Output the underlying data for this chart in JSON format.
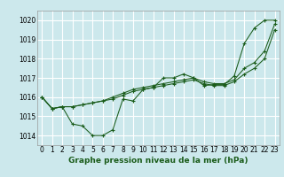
{
  "xlabel": "Graphe pression niveau de la mer (hPa)",
  "ylim": [
    1013.5,
    1020.5
  ],
  "xlim": [
    -0.5,
    23.5
  ],
  "yticks": [
    1014,
    1015,
    1016,
    1017,
    1018,
    1019,
    1020
  ],
  "xticks": [
    0,
    1,
    2,
    3,
    4,
    5,
    6,
    7,
    8,
    9,
    10,
    11,
    12,
    13,
    14,
    15,
    16,
    17,
    18,
    19,
    20,
    21,
    22,
    23
  ],
  "bg_color": "#cce8ec",
  "grid_color": "#ffffff",
  "line_color": "#1a5c1a",
  "series": [
    [
      1016.0,
      1015.4,
      1015.5,
      1014.6,
      1014.5,
      1014.0,
      1014.0,
      1014.3,
      1015.9,
      1015.8,
      1016.4,
      1016.5,
      1017.0,
      1017.0,
      1017.2,
      1017.0,
      1016.6,
      1016.65,
      1016.65,
      1017.1,
      1018.8,
      1019.6,
      1020.0,
      1020.0
    ],
    [
      1016.0,
      1015.4,
      1015.5,
      1015.5,
      1015.6,
      1015.7,
      1015.8,
      1015.9,
      1016.1,
      1016.3,
      1016.4,
      1016.5,
      1016.6,
      1016.7,
      1016.8,
      1016.9,
      1016.7,
      1016.6,
      1016.6,
      1016.8,
      1017.2,
      1017.5,
      1018.0,
      1019.5
    ],
    [
      1016.0,
      1015.4,
      1015.5,
      1015.5,
      1015.6,
      1015.7,
      1015.8,
      1016.0,
      1016.2,
      1016.4,
      1016.5,
      1016.6,
      1016.7,
      1016.8,
      1016.9,
      1017.0,
      1016.8,
      1016.7,
      1016.7,
      1016.9,
      1017.5,
      1017.8,
      1018.4,
      1019.8
    ]
  ],
  "label_fontsize": 5.5,
  "xlabel_fontsize": 6.5
}
